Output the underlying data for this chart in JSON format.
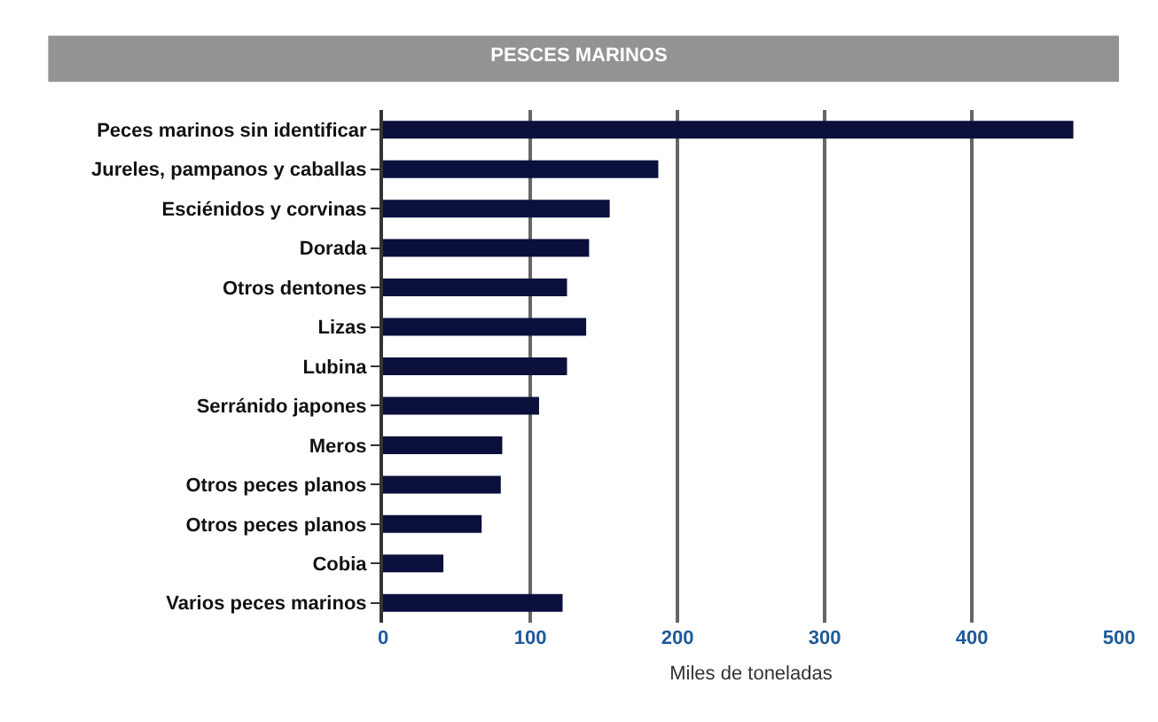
{
  "chart_data": {
    "type": "bar",
    "orientation": "horizontal",
    "title": "PESCES MARINOS",
    "xlabel": "Miles de toneladas",
    "categories": [
      "Peces marinos sin identificar",
      "Jureles, pampanos y caballas",
      "Esciénidos y corvinas",
      "Dorada",
      "Otros dentones",
      "Lizas",
      "Lubina",
      "Serránido japones",
      "Meros",
      "Otros peces planos",
      "Otros peces planos",
      "Cobia",
      "Varios peces marinos"
    ],
    "values": [
      469,
      187,
      154,
      140,
      125,
      138,
      125,
      106,
      81,
      80,
      67,
      41,
      122
    ],
    "color": "#0a0f3b",
    "xlim": [
      0,
      500
    ],
    "xticks": [
      0,
      100,
      200,
      300,
      400,
      500
    ],
    "grid": "x"
  }
}
